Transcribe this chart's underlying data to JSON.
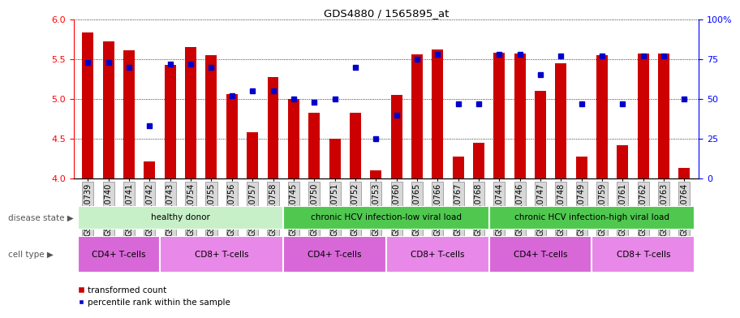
{
  "title": "GDS4880 / 1565895_at",
  "samples": [
    "GSM1210739",
    "GSM1210740",
    "GSM1210741",
    "GSM1210742",
    "GSM1210743",
    "GSM1210754",
    "GSM1210755",
    "GSM1210756",
    "GSM1210757",
    "GSM1210758",
    "GSM1210745",
    "GSM1210750",
    "GSM1210751",
    "GSM1210752",
    "GSM1210753",
    "GSM1210760",
    "GSM1210765",
    "GSM1210766",
    "GSM1210767",
    "GSM1210768",
    "GSM1210744",
    "GSM1210746",
    "GSM1210747",
    "GSM1210748",
    "GSM1210749",
    "GSM1210759",
    "GSM1210761",
    "GSM1210762",
    "GSM1210763",
    "GSM1210764"
  ],
  "bar_values": [
    5.83,
    5.72,
    5.61,
    4.22,
    5.43,
    5.65,
    5.55,
    5.06,
    4.58,
    5.27,
    5.0,
    4.83,
    4.5,
    4.83,
    4.1,
    5.05,
    5.56,
    5.62,
    4.28,
    4.45,
    5.58,
    5.57,
    5.1,
    5.45,
    4.28,
    5.55,
    4.42,
    5.57,
    5.57,
    4.13
  ],
  "dot_pct": [
    73,
    73,
    70,
    33,
    72,
    72,
    70,
    52,
    55,
    55,
    50,
    48,
    50,
    70,
    25,
    40,
    75,
    78,
    47,
    47,
    78,
    78,
    65,
    77,
    47,
    77,
    47,
    77,
    77,
    50
  ],
  "ylim_left": [
    4.0,
    6.0
  ],
  "yticks_left": [
    4.0,
    4.5,
    5.0,
    5.5,
    6.0
  ],
  "ylim_right": [
    0,
    100
  ],
  "yticks_right": [
    0,
    25,
    50,
    75,
    100
  ],
  "bar_color": "#CC0000",
  "dot_color": "#0000CC",
  "bar_bottom": 4.0,
  "disease_spans": [
    {
      "label": "healthy donor",
      "start": 0,
      "end": 10,
      "color": "#b8f0b8"
    },
    {
      "label": "chronic HCV infection-low viral load",
      "start": 10,
      "end": 20,
      "color": "#60d060"
    },
    {
      "label": "chronic HCV infection-high viral load",
      "start": 20,
      "end": 30,
      "color": "#60d060"
    }
  ],
  "cell_spans": [
    {
      "label": "CD4+ T-cells",
      "start": 0,
      "end": 4,
      "color": "#e070e0"
    },
    {
      "label": "CD8+ T-cells",
      "start": 4,
      "end": 10,
      "color": "#e070e0"
    },
    {
      "label": "CD4+ T-cells",
      "start": 10,
      "end": 15,
      "color": "#e070e0"
    },
    {
      "label": "CD8+ T-cells",
      "start": 15,
      "end": 20,
      "color": "#e070e0"
    },
    {
      "label": "CD4+ T-cells",
      "start": 20,
      "end": 25,
      "color": "#e070e0"
    },
    {
      "label": "CD8+ T-cells",
      "start": 25,
      "end": 30,
      "color": "#e070e0"
    }
  ],
  "disease_row_label": "disease state",
  "cell_row_label": "cell type",
  "legend_bar": "transformed count",
  "legend_dot": "percentile rank within the sample",
  "tick_label_fontsize": 7,
  "bar_width": 0.55
}
